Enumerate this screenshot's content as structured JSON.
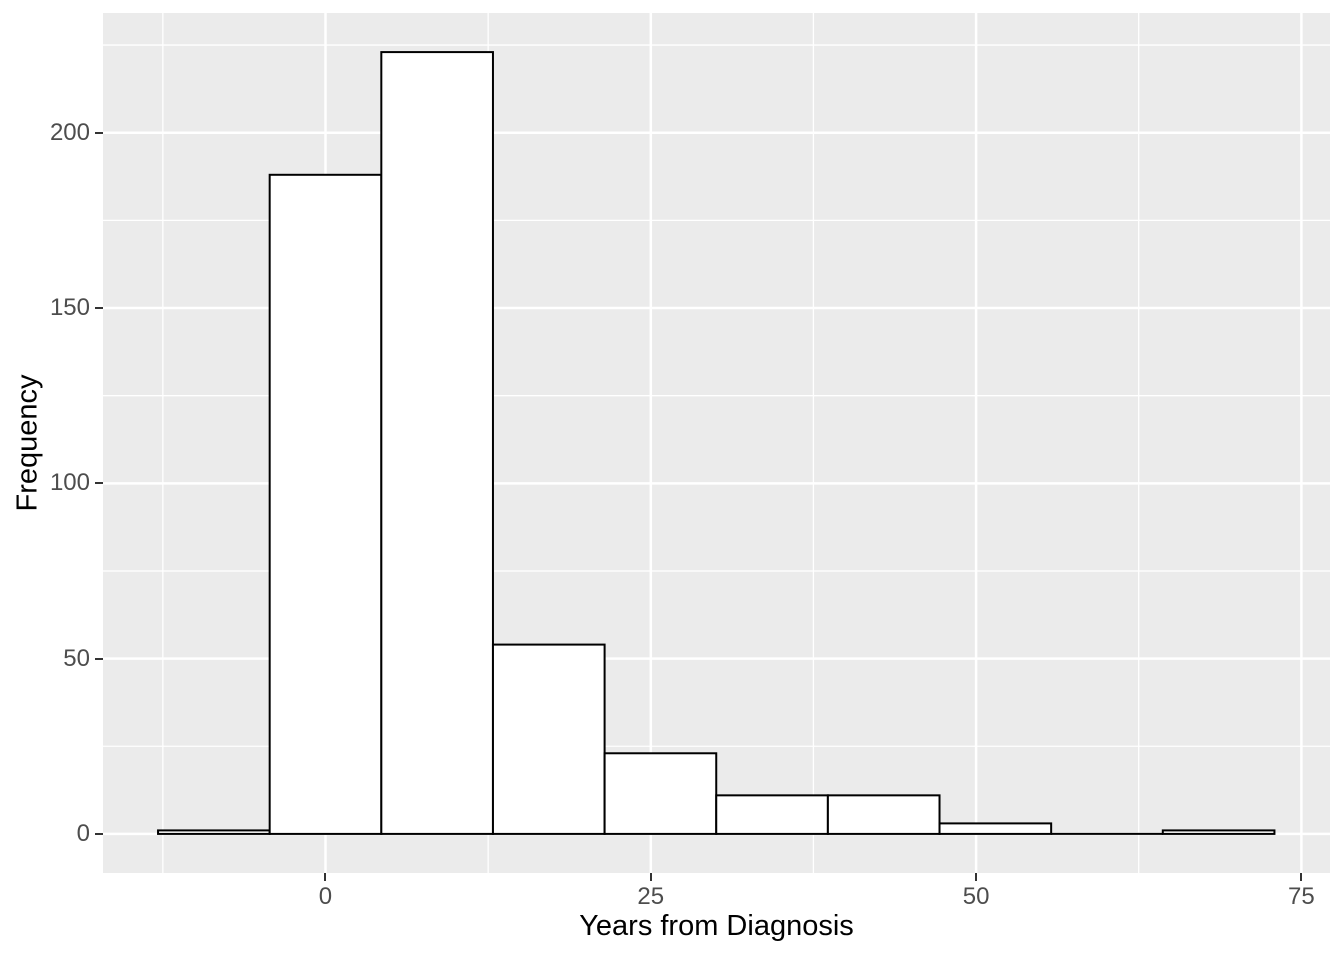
{
  "chart_data": {
    "type": "histogram",
    "title": "",
    "xlabel": "Years from Diagnosis",
    "ylabel": "Frequency",
    "bin_edges": [
      -12.87,
      -4.29,
      4.29,
      12.87,
      21.45,
      30.03,
      38.61,
      47.19,
      55.77,
      64.35,
      72.93
    ],
    "counts": [
      1,
      188,
      223,
      54,
      23,
      11,
      11,
      3,
      0,
      1
    ],
    "binwidth": 8.58,
    "total_n": 515,
    "x_ticks": [
      0,
      25,
      50,
      75
    ],
    "y_ticks": [
      0,
      50,
      100,
      150,
      200
    ],
    "x_minor_ticks": [
      -12.5,
      12.5,
      37.5,
      62.5
    ],
    "y_minor_ticks": [
      25,
      75,
      125,
      175,
      225
    ],
    "xlim": [
      -17.1,
      77.2
    ],
    "ylim": [
      -11.15,
      234.15
    ],
    "grid": true,
    "legend_position": "none",
    "colors": {
      "panel_background": "#EBEBEB",
      "grid_major": "#FFFFFF",
      "grid_minor": "#FFFFFF",
      "bar_fill": "#FFFFFF",
      "bar_stroke": "#000000",
      "tick_mark": "#333333",
      "tick_label": "#4D4D4D",
      "axis_title": "#000000",
      "figure_background": "#FFFFFF"
    }
  }
}
